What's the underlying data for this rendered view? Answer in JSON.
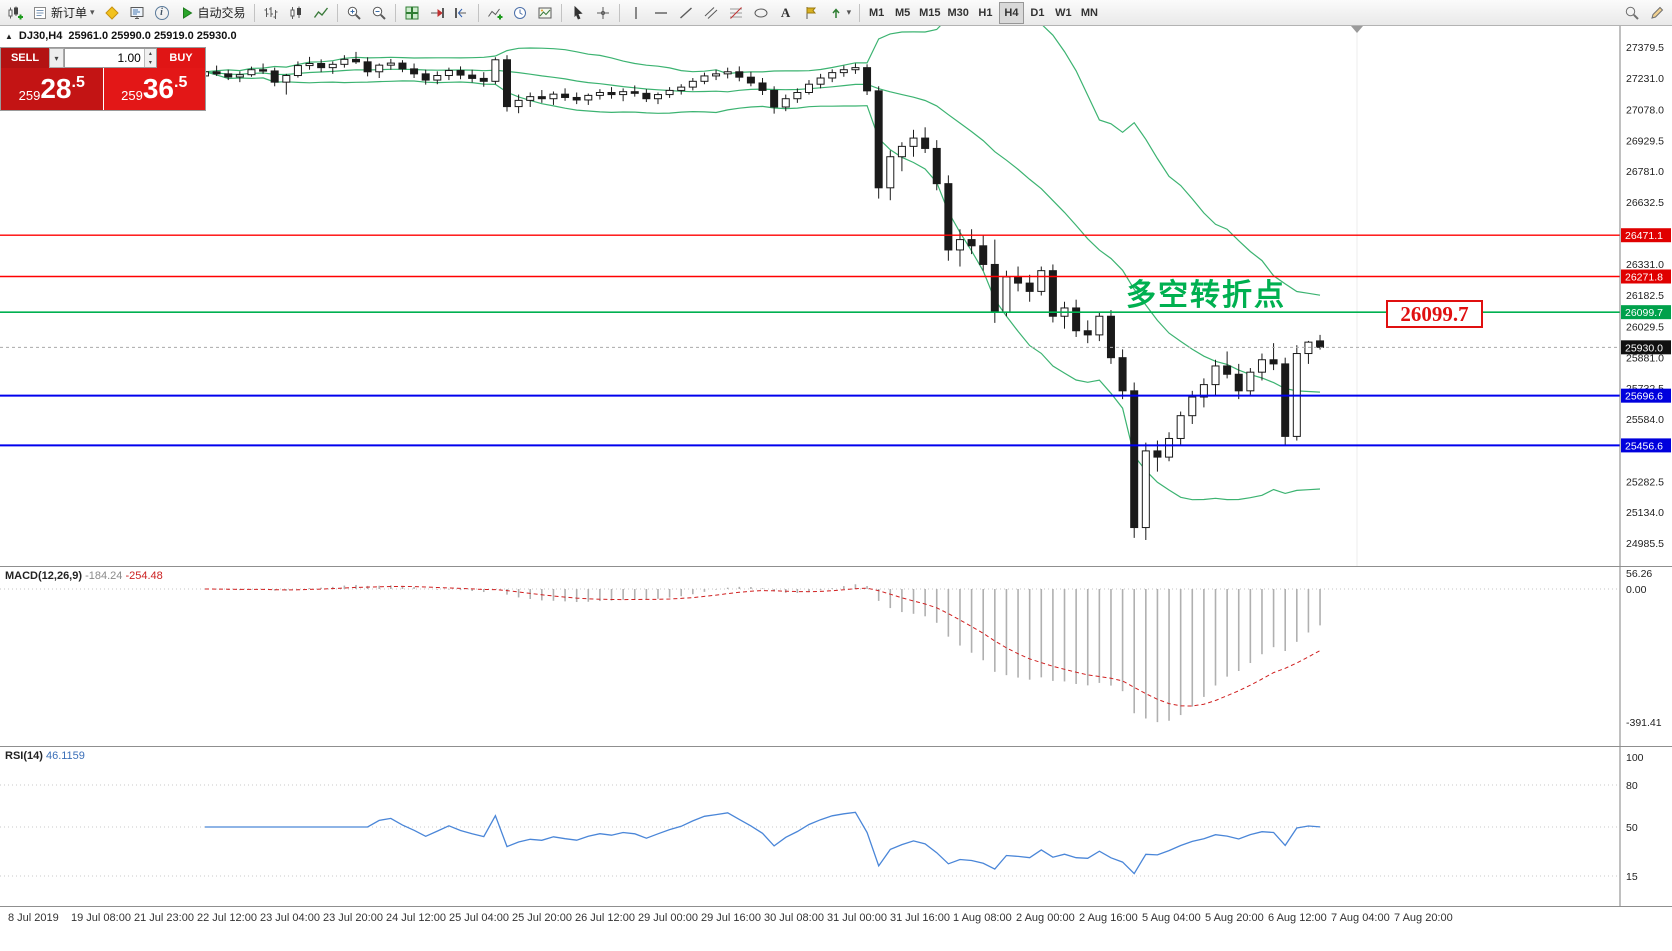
{
  "icons": {
    "caret_down": "▾",
    "caret_up": "▴",
    "panel_toggle": "▲"
  },
  "toolbar": {
    "new_order_label": "新订单",
    "autotrading_label": "自动交易",
    "text_tool_label": "A",
    "timeframes": [
      "M1",
      "M5",
      "M15",
      "M30",
      "H1",
      "H4",
      "D1",
      "W1",
      "MN"
    ],
    "active_timeframe": "H4"
  },
  "one_click": {
    "sell_label": "SELL",
    "buy_label": "BUY",
    "volume": "1.00",
    "sell_price": "25928.5",
    "buy_price": "25936.5"
  },
  "chart": {
    "symbol_period": "DJ30,H4",
    "ohlc_text": "25961.0 25990.0 25919.0 25930.0"
  },
  "chart_data": {
    "type": "candlestick",
    "symbol": "DJ30",
    "timeframe": "H4",
    "colors": {
      "bull": "#ffffff",
      "bear": "#1a1a1a",
      "wick": "#1a1a1a",
      "bollinger": "#3cb371",
      "macd_hist": "#b0b0b0",
      "macd_signal": "#d02020",
      "rsi_line": "#4a86d8",
      "axis_sep": "#808080"
    },
    "price_axis": [
      {
        "v": 27379.5
      },
      {
        "v": 27231.0
      },
      {
        "v": 27078.0
      },
      {
        "v": 26929.5
      },
      {
        "v": 26781.0
      },
      {
        "v": 26632.5
      },
      {
        "v": 26471.1,
        "badge": "red"
      },
      {
        "v": 26331.0
      },
      {
        "v": 26271.8,
        "badge": "red"
      },
      {
        "v": 26182.5
      },
      {
        "v": 26099.7,
        "badge": "green"
      },
      {
        "v": 26029.5
      },
      {
        "v": 25930.0,
        "badge": "black"
      },
      {
        "v": 25881.0
      },
      {
        "v": 25732.5
      },
      {
        "v": 25696.6,
        "badge": "blue"
      },
      {
        "v": 25584.0
      },
      {
        "v": 25456.6,
        "badge": "blue"
      },
      {
        "v": 25282.5
      },
      {
        "v": 25134.0
      },
      {
        "v": 24985.5
      }
    ],
    "hlines": [
      {
        "price": 26471.1,
        "color": "#ff0000",
        "width": 1.4
      },
      {
        "price": 26271.8,
        "color": "#ff0000",
        "width": 1.4
      },
      {
        "price": 26099.7,
        "color": "#00b050",
        "width": 1.6
      },
      {
        "price": 25696.6,
        "color": "#0000ee",
        "width": 2
      },
      {
        "price": 25456.6,
        "color": "#0000ee",
        "width": 2
      }
    ],
    "current_price": 25930.0,
    "annotations": {
      "turning_point": "多空转折点",
      "price_callout": "26099.7"
    },
    "macd": {
      "label": "MACD(12,26,9)",
      "main_value": "-184.24",
      "signal_value": "-254.48",
      "axis": [
        "56.26",
        "0.00",
        "-391.41"
      ]
    },
    "rsi": {
      "label": "RSI(14)",
      "value": "46.1159",
      "axis": [
        "100",
        "80",
        "50",
        "15"
      ],
      "levels": [
        80,
        50,
        15
      ]
    },
    "time_labels": [
      "8 Jul 2019",
      "19 Jul 08:00",
      "21 Jul 23:00",
      "22 Jul 12:00",
      "23 Jul 04:00",
      "23 Jul 20:00",
      "24 Jul 12:00",
      "25 Jul 04:00",
      "25 Jul 20:00",
      "26 Jul 12:00",
      "29 Jul 00:00",
      "29 Jul 16:00",
      "30 Jul 08:00",
      "31 Jul 00:00",
      "31 Jul 16:00",
      "1 Aug 08:00",
      "2 Aug 00:00",
      "2 Aug 16:00",
      "5 Aug 04:00",
      "5 Aug 20:00",
      "6 Aug 12:00",
      "7 Aug 04:00",
      "7 Aug 20:00"
    ],
    "candles": [
      [
        27240,
        27275,
        27225,
        27260
      ],
      [
        27260,
        27290,
        27240,
        27250
      ],
      [
        27250,
        27270,
        27220,
        27235
      ],
      [
        27235,
        27262,
        27210,
        27246
      ],
      [
        27246,
        27285,
        27236,
        27270
      ],
      [
        27270,
        27300,
        27250,
        27264
      ],
      [
        27264,
        27280,
        27190,
        27210
      ],
      [
        27210,
        27250,
        27150,
        27242
      ],
      [
        27242,
        27310,
        27232,
        27290
      ],
      [
        27290,
        27332,
        27270,
        27300
      ],
      [
        27300,
        27320,
        27258,
        27280
      ],
      [
        27280,
        27310,
        27250,
        27296
      ],
      [
        27296,
        27340,
        27280,
        27320
      ],
      [
        27320,
        27356,
        27298,
        27308
      ],
      [
        27308,
        27330,
        27238,
        27260
      ],
      [
        27260,
        27300,
        27230,
        27292
      ],
      [
        27292,
        27322,
        27270,
        27302
      ],
      [
        27302,
        27316,
        27258,
        27274
      ],
      [
        27274,
        27300,
        27230,
        27250
      ],
      [
        27250,
        27270,
        27198,
        27220
      ],
      [
        27220,
        27262,
        27200,
        27242
      ],
      [
        27242,
        27280,
        27220,
        27266
      ],
      [
        27266,
        27286,
        27224,
        27244
      ],
      [
        27244,
        27270,
        27208,
        27228
      ],
      [
        27228,
        27258,
        27188,
        27214
      ],
      [
        27214,
        27330,
        27200,
        27318
      ],
      [
        27318,
        27340,
        27068,
        27092
      ],
      [
        27092,
        27150,
        27060,
        27122
      ],
      [
        27122,
        27160,
        27090,
        27140
      ],
      [
        27140,
        27172,
        27110,
        27130
      ],
      [
        27130,
        27165,
        27100,
        27152
      ],
      [
        27152,
        27180,
        27120,
        27136
      ],
      [
        27136,
        27160,
        27104,
        27124
      ],
      [
        27124,
        27155,
        27100,
        27146
      ],
      [
        27146,
        27176,
        27126,
        27160
      ],
      [
        27160,
        27186,
        27130,
        27150
      ],
      [
        27150,
        27180,
        27118,
        27164
      ],
      [
        27164,
        27194,
        27140,
        27156
      ],
      [
        27156,
        27176,
        27114,
        27130
      ],
      [
        27130,
        27160,
        27104,
        27150
      ],
      [
        27150,
        27186,
        27134,
        27170
      ],
      [
        27170,
        27200,
        27150,
        27186
      ],
      [
        27186,
        27230,
        27170,
        27214
      ],
      [
        27214,
        27256,
        27200,
        27240
      ],
      [
        27240,
        27270,
        27220,
        27250
      ],
      [
        27250,
        27280,
        27228,
        27260
      ],
      [
        27260,
        27286,
        27214,
        27234
      ],
      [
        27234,
        27260,
        27190,
        27206
      ],
      [
        27206,
        27230,
        27148,
        27170
      ],
      [
        27170,
        27190,
        27058,
        27090
      ],
      [
        27090,
        27150,
        27070,
        27130
      ],
      [
        27130,
        27180,
        27110,
        27160
      ],
      [
        27160,
        27220,
        27150,
        27200
      ],
      [
        27200,
        27250,
        27180,
        27230
      ],
      [
        27230,
        27272,
        27210,
        27256
      ],
      [
        27256,
        27290,
        27236,
        27270
      ],
      [
        27270,
        27300,
        27250,
        27280
      ],
      [
        27280,
        27296,
        27148,
        27168
      ],
      [
        27168,
        27190,
        26648,
        26700
      ],
      [
        26700,
        26880,
        26640,
        26850
      ],
      [
        26850,
        26920,
        26780,
        26900
      ],
      [
        26900,
        26980,
        26850,
        26940
      ],
      [
        26940,
        26992,
        26868,
        26890
      ],
      [
        26890,
        26930,
        26688,
        26720
      ],
      [
        26720,
        26760,
        26348,
        26400
      ],
      [
        26400,
        26500,
        26320,
        26450
      ],
      [
        26450,
        26500,
        26380,
        26420
      ],
      [
        26420,
        26470,
        26300,
        26330
      ],
      [
        26330,
        26450,
        26048,
        26100
      ],
      [
        26100,
        26300,
        26080,
        26270
      ],
      [
        26270,
        26320,
        26200,
        26240
      ],
      [
        26240,
        26280,
        26150,
        26200
      ],
      [
        26200,
        26320,
        26180,
        26300
      ],
      [
        26300,
        26330,
        26050,
        26080
      ],
      [
        26080,
        26150,
        26020,
        26120
      ],
      [
        26120,
        26160,
        25980,
        26010
      ],
      [
        26010,
        26060,
        25950,
        25990
      ],
      [
        25990,
        26100,
        25960,
        26080
      ],
      [
        26080,
        26110,
        25850,
        25880
      ],
      [
        25880,
        25920,
        25680,
        25720
      ],
      [
        25720,
        25760,
        25010,
        25060
      ],
      [
        25060,
        25470,
        25000,
        25430
      ],
      [
        25430,
        25480,
        25330,
        25400
      ],
      [
        25400,
        25520,
        25380,
        25490
      ],
      [
        25490,
        25620,
        25460,
        25600
      ],
      [
        25600,
        25720,
        25560,
        25690
      ],
      [
        25690,
        25780,
        25640,
        25750
      ],
      [
        25750,
        25870,
        25700,
        25840
      ],
      [
        25840,
        25910,
        25780,
        25800
      ],
      [
        25800,
        25850,
        25680,
        25720
      ],
      [
        25720,
        25830,
        25700,
        25810
      ],
      [
        25810,
        25900,
        25770,
        25870
      ],
      [
        25870,
        25950,
        25820,
        25850
      ],
      [
        25850,
        25880,
        25460,
        25500
      ],
      [
        25500,
        25940,
        25480,
        25900
      ],
      [
        25900,
        25961,
        25850,
        25955
      ],
      [
        25961,
        25990,
        25919,
        25930
      ]
    ]
  }
}
